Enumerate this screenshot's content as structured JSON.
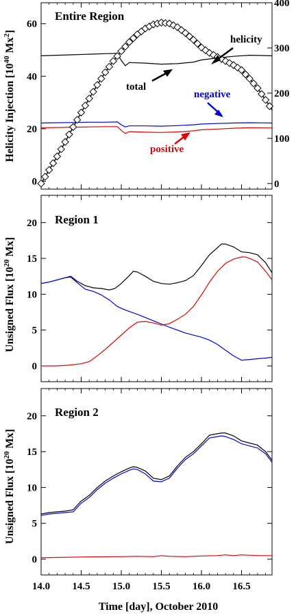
{
  "xlabel": "Time [day],  October 2010",
  "chart_data": [
    {
      "type": "line",
      "title": "Entire Region",
      "ylabel": "Helicity Injection [10^40 Mx^2]",
      "ylabel_parts": {
        "main": "Helicity Injection [10",
        "exp1": "40",
        "mid": " Mx",
        "exp2": "2",
        "end": "]"
      },
      "xlim": [
        14.0,
        16.88
      ],
      "ylim": [
        -3,
        68
      ],
      "yticks": [
        0,
        20,
        40,
        60
      ],
      "xticks": [
        14.0,
        14.5,
        15.0,
        15.5,
        16.0,
        16.5
      ],
      "y2lim": [
        -12.4,
        400
      ],
      "y2ticks": [
        0,
        100,
        200,
        300,
        400
      ],
      "annotations": [
        {
          "label": "helicity",
          "color": "#000000"
        },
        {
          "label": "total",
          "color": "#000000"
        },
        {
          "label": "negative",
          "color": "#0000dd"
        },
        {
          "label": "positive",
          "color": "#e00000"
        }
      ],
      "series": [
        {
          "name": "total",
          "color": "#000000",
          "axis": "left",
          "x": [
            14.0,
            14.2,
            14.4,
            14.6,
            14.8,
            14.95,
            15.0,
            15.05,
            15.1,
            15.3,
            15.5,
            15.7,
            15.9,
            16.0,
            16.2,
            16.4,
            16.6,
            16.88
          ],
          "y": [
            47.8,
            48.0,
            48.2,
            48.4,
            48.6,
            48.7,
            46.0,
            44.0,
            45.2,
            45.0,
            44.6,
            44.8,
            45.4,
            46.2,
            47.0,
            47.6,
            48.0,
            47.8
          ]
        },
        {
          "name": "negative",
          "color": "#0000dd",
          "axis": "left",
          "x": [
            14.0,
            14.2,
            14.4,
            14.6,
            14.8,
            14.95,
            15.0,
            15.05,
            15.1,
            15.3,
            15.5,
            15.7,
            15.9,
            16.0,
            16.2,
            16.4,
            16.6,
            16.88
          ],
          "y": [
            22.2,
            22.3,
            22.4,
            22.5,
            22.5,
            22.6,
            21.5,
            20.7,
            21.1,
            21.1,
            21.0,
            21.2,
            21.5,
            21.8,
            22.0,
            22.2,
            22.3,
            22.2
          ]
        },
        {
          "name": "positive",
          "color": "#e00000",
          "axis": "left",
          "x": [
            14.0,
            14.2,
            14.4,
            14.6,
            14.8,
            14.95,
            15.0,
            15.05,
            15.1,
            15.3,
            15.5,
            15.7,
            15.9,
            16.0,
            16.2,
            16.4,
            16.6,
            16.88
          ],
          "y": [
            20.3,
            20.5,
            20.6,
            20.7,
            20.8,
            20.8,
            19.4,
            18.2,
            18.9,
            18.7,
            18.6,
            18.8,
            19.2,
            19.6,
            19.9,
            20.2,
            20.4,
            20.3
          ]
        },
        {
          "name": "helicity",
          "color": "#000000",
          "axis": "right",
          "marker": "diamond",
          "x": [
            14.0,
            14.1,
            14.2,
            14.3,
            14.4,
            14.5,
            14.6,
            14.7,
            14.8,
            14.9,
            15.0,
            15.1,
            15.2,
            15.3,
            15.4,
            15.5,
            15.6,
            15.7,
            15.8,
            15.9,
            16.0,
            16.1,
            16.2,
            16.3,
            16.4,
            16.5,
            16.6,
            16.7,
            16.8,
            16.88
          ],
          "y": [
            0,
            30,
            60,
            92,
            125,
            157,
            188,
            218,
            246,
            271,
            293,
            313,
            330,
            343,
            352,
            356,
            354,
            346,
            333,
            318,
            301,
            289,
            280,
            271,
            262,
            251,
            232,
            211,
            185,
            163
          ]
        }
      ]
    },
    {
      "type": "line",
      "title": "Region 1",
      "ylabel": "Unsigned Flux [10^20 Mx]",
      "ylabel_parts": {
        "main": "Unsigned Flux [10",
        "exp1": "20",
        "mid": " Mx]"
      },
      "xlim": [
        14.0,
        16.88
      ],
      "ylim": [
        -2.2,
        23.8
      ],
      "yticks": [
        0,
        5,
        10,
        15,
        20
      ],
      "xticks": [
        14.0,
        14.5,
        15.0,
        15.5,
        16.0,
        16.5
      ],
      "series": [
        {
          "name": "total",
          "color": "#000000",
          "x": [
            14.0,
            14.1,
            14.2,
            14.3,
            14.37,
            14.45,
            14.55,
            14.65,
            14.75,
            14.85,
            14.92,
            15.0,
            15.1,
            15.15,
            15.2,
            15.3,
            15.4,
            15.5,
            15.6,
            15.7,
            15.8,
            15.9,
            16.0,
            16.1,
            16.2,
            16.25,
            16.3,
            16.4,
            16.5,
            16.6,
            16.7,
            16.8,
            16.88
          ],
          "y": [
            11.5,
            11.7,
            12.0,
            12.3,
            12.5,
            11.8,
            11.2,
            10.9,
            10.8,
            10.6,
            10.8,
            11.5,
            12.6,
            13.2,
            13.1,
            12.5,
            11.8,
            11.5,
            11.4,
            11.6,
            11.9,
            12.6,
            14.0,
            15.5,
            16.5,
            17.0,
            17.0,
            16.6,
            15.9,
            15.8,
            15.5,
            14.4,
            13.0
          ]
        },
        {
          "name": "negative",
          "color": "#0000dd",
          "x": [
            14.0,
            14.1,
            14.2,
            14.3,
            14.37,
            14.45,
            14.55,
            14.65,
            14.75,
            14.85,
            14.95,
            15.05,
            15.2,
            15.4,
            15.6,
            15.8,
            16.0,
            16.1,
            16.2,
            16.3,
            16.4,
            16.5,
            16.6,
            16.7,
            16.8,
            16.88
          ],
          "y": [
            11.5,
            11.7,
            12.0,
            12.3,
            12.4,
            11.6,
            10.7,
            10.4,
            9.9,
            9.2,
            8.3,
            7.8,
            7.2,
            6.3,
            5.4,
            4.6,
            4.0,
            3.6,
            3.0,
            2.2,
            1.4,
            0.8,
            0.9,
            1.0,
            1.1,
            1.2
          ]
        },
        {
          "name": "positive",
          "color": "#e00000",
          "x": [
            14.0,
            14.2,
            14.35,
            14.5,
            14.6,
            14.7,
            14.8,
            14.9,
            15.0,
            15.1,
            15.2,
            15.3,
            15.4,
            15.5,
            15.6,
            15.7,
            15.8,
            15.9,
            16.0,
            16.1,
            16.2,
            16.3,
            16.4,
            16.5,
            16.55,
            16.6,
            16.7,
            16.8,
            16.88
          ],
          "y": [
            0.0,
            0.0,
            0.1,
            0.3,
            0.6,
            1.4,
            2.3,
            3.3,
            4.3,
            5.3,
            6.1,
            6.2,
            6.0,
            5.7,
            5.9,
            6.5,
            7.2,
            8.3,
            9.9,
            11.7,
            13.2,
            14.3,
            14.9,
            15.2,
            15.2,
            15.0,
            14.5,
            13.2,
            12.0
          ]
        }
      ]
    },
    {
      "type": "line",
      "title": "Region 2",
      "ylabel": "Unsigned Flux [10^20 Mx]",
      "ylabel_parts": {
        "main": "Unsigned Flux [10",
        "exp1": "20",
        "mid": " Mx]"
      },
      "xlim": [
        14.0,
        16.88
      ],
      "ylim": [
        -2.2,
        23.8
      ],
      "yticks": [
        0,
        5,
        10,
        15,
        20
      ],
      "xticks": [
        14.0,
        14.5,
        15.0,
        15.5,
        16.0,
        16.5
      ],
      "series": [
        {
          "name": "total",
          "color": "#000000",
          "x": [
            14.0,
            14.1,
            14.2,
            14.3,
            14.4,
            14.5,
            14.6,
            14.7,
            14.8,
            14.9,
            15.0,
            15.1,
            15.15,
            15.2,
            15.3,
            15.4,
            15.5,
            15.6,
            15.7,
            15.8,
            15.9,
            16.0,
            16.1,
            16.2,
            16.25,
            16.3,
            16.4,
            16.5,
            16.6,
            16.7,
            16.8,
            16.88
          ],
          "y": [
            6.3,
            6.5,
            6.6,
            6.7,
            6.9,
            8.1,
            8.9,
            10.0,
            10.9,
            11.6,
            12.2,
            12.7,
            12.9,
            12.8,
            12.3,
            11.3,
            11.1,
            11.6,
            13.0,
            14.2,
            15.0,
            16.1,
            17.3,
            17.5,
            17.6,
            17.6,
            17.2,
            16.5,
            16.2,
            15.9,
            15.0,
            13.8
          ]
        },
        {
          "name": "negative",
          "color": "#0000dd",
          "x": [
            14.0,
            14.1,
            14.2,
            14.3,
            14.4,
            14.5,
            14.6,
            14.7,
            14.8,
            14.9,
            15.0,
            15.1,
            15.15,
            15.2,
            15.3,
            15.4,
            15.5,
            15.6,
            15.7,
            15.8,
            15.9,
            16.0,
            16.1,
            16.2,
            16.25,
            16.3,
            16.4,
            16.5,
            16.6,
            16.7,
            16.8,
            16.88
          ],
          "y": [
            6.1,
            6.3,
            6.4,
            6.5,
            6.6,
            7.8,
            8.6,
            9.7,
            10.6,
            11.3,
            11.9,
            12.4,
            12.6,
            12.5,
            11.9,
            10.9,
            10.8,
            11.3,
            12.7,
            13.9,
            14.7,
            15.8,
            16.9,
            17.1,
            17.2,
            17.1,
            16.7,
            16.1,
            15.8,
            15.5,
            14.7,
            13.5
          ]
        },
        {
          "name": "positive",
          "color": "#e00000",
          "x": [
            14.0,
            14.5,
            15.0,
            15.2,
            15.4,
            15.5,
            15.6,
            15.8,
            16.0,
            16.2,
            16.3,
            16.4,
            16.5,
            16.6,
            16.7,
            16.88
          ],
          "y": [
            0.2,
            0.3,
            0.35,
            0.4,
            0.35,
            0.5,
            0.4,
            0.35,
            0.45,
            0.5,
            0.6,
            0.5,
            0.6,
            0.55,
            0.5,
            0.5
          ]
        }
      ]
    }
  ]
}
